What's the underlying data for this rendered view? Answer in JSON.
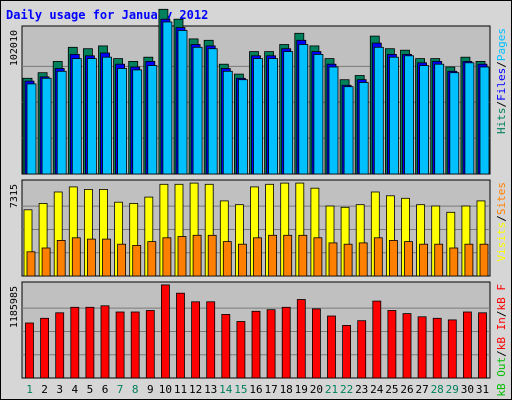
{
  "chart_data": {
    "type": "bar",
    "title": "Daily usage for January 2012",
    "days": [
      "1",
      "2",
      "3",
      "4",
      "5",
      "6",
      "7",
      "8",
      "9",
      "10",
      "11",
      "12",
      "13",
      "14",
      "15",
      "16",
      "17",
      "18",
      "19",
      "20",
      "21",
      "22",
      "23",
      "24",
      "25",
      "26",
      "27",
      "28",
      "29",
      "30",
      "31"
    ],
    "weekend_days": [
      1,
      7,
      8,
      14,
      15,
      21,
      22,
      28,
      29
    ],
    "colors": {
      "hits": "#00805c",
      "files": "#0000ff",
      "pages": "#00c0ff",
      "visits": "#ffff00",
      "sites": "#ff8000",
      "kb_in": "#ff0000",
      "kb_out": "#00c000",
      "title": "#0000ff",
      "weekday_label": "#000000",
      "weekend_label": "#00805c",
      "panel_bg": "#c0c0c0",
      "frame_bg": "#d6d6d6"
    },
    "panels": [
      {
        "scale_label": "102010",
        "y_max": 102010,
        "series": [
          {
            "key": "hits",
            "name": "Hits",
            "values": [
              68000,
              72000,
              80000,
              90000,
              89000,
              91000,
              82000,
              80000,
              83000,
              117000,
              110000,
              96000,
              95000,
              78000,
              71000,
              87000,
              87000,
              92000,
              100000,
              91000,
              82000,
              67000,
              70000,
              98000,
              89000,
              88000,
              82000,
              82000,
              76000,
              83000,
              80000
            ]
          },
          {
            "key": "files",
            "name": "Files",
            "values": [
              66000,
              69000,
              75000,
              85000,
              84000,
              86000,
              78000,
              76000,
              80000,
              110000,
              104000,
              92000,
              91000,
              75000,
              68000,
              84000,
              84000,
              89000,
              95000,
              87000,
              78000,
              63000,
              67000,
              93000,
              85000,
              85000,
              79000,
              80000,
              73000,
              80000,
              78000
            ]
          },
          {
            "key": "pages",
            "name": "Pages",
            "values": [
              64000,
              68000,
              73000,
              82000,
              82000,
              83000,
              75000,
              74000,
              77000,
              108000,
              102000,
              90000,
              89000,
              73000,
              67000,
              82000,
              82000,
              87000,
              92000,
              85000,
              76000,
              62000,
              65000,
              90000,
              83000,
              84000,
              77000,
              78000,
              72000,
              79000,
              76000
            ]
          }
        ]
      },
      {
        "scale_label": "7315",
        "y_max": 7315,
        "series": [
          {
            "key": "visits",
            "name": "Visits",
            "values": [
              5200,
              5700,
              6600,
              7000,
              6800,
              6800,
              5800,
              5700,
              6200,
              7200,
              7200,
              7300,
              7200,
              5900,
              5600,
              7000,
              7200,
              7300,
              7300,
              6900,
              5500,
              5400,
              5600,
              6600,
              6300,
              6100,
              5600,
              5500,
              5000,
              5500,
              5900
            ]
          },
          {
            "key": "sites",
            "name": "Sites",
            "values": [
              1900,
              2200,
              2800,
              3000,
              2900,
              2900,
              2500,
              2400,
              2700,
              3000,
              3100,
              3200,
              3200,
              2700,
              2500,
              3000,
              3200,
              3200,
              3200,
              3000,
              2600,
              2500,
              2600,
              3000,
              2800,
              2700,
              2500,
              2500,
              2200,
              2500,
              2500
            ]
          }
        ]
      },
      {
        "scale_label": "1185985",
        "y_max": 1185985,
        "series": [
          {
            "key": "kb_in",
            "name": "kB In",
            "values": [
              700000,
              760000,
              830000,
              900000,
              900000,
              920000,
              840000,
              840000,
              860000,
              1185985,
              1080000,
              970000,
              970000,
              810000,
              720000,
              850000,
              870000,
              900000,
              1000000,
              880000,
              790000,
              670000,
              730000,
              980000,
              860000,
              820000,
              780000,
              760000,
              740000,
              840000,
              830000
            ]
          }
        ]
      }
    ],
    "legends": [
      [
        {
          "key": "hits",
          "text": "Hits"
        },
        {
          "sep": "/"
        },
        {
          "key": "files",
          "text": "Files"
        },
        {
          "sep": "/"
        },
        {
          "key": "pages",
          "text": "Pages"
        }
      ],
      [
        {
          "key": "visits",
          "text": "Visits"
        },
        {
          "sep": "/"
        },
        {
          "key": "sites",
          "text": "Sites"
        }
      ],
      [
        {
          "key": "kb_out",
          "text": "kB Out"
        },
        {
          "sep": "/"
        },
        {
          "key": "kb_in",
          "text": "kB In"
        },
        {
          "sep": "/"
        },
        {
          "key": "kb_in",
          "text": "kB F"
        }
      ]
    ]
  }
}
